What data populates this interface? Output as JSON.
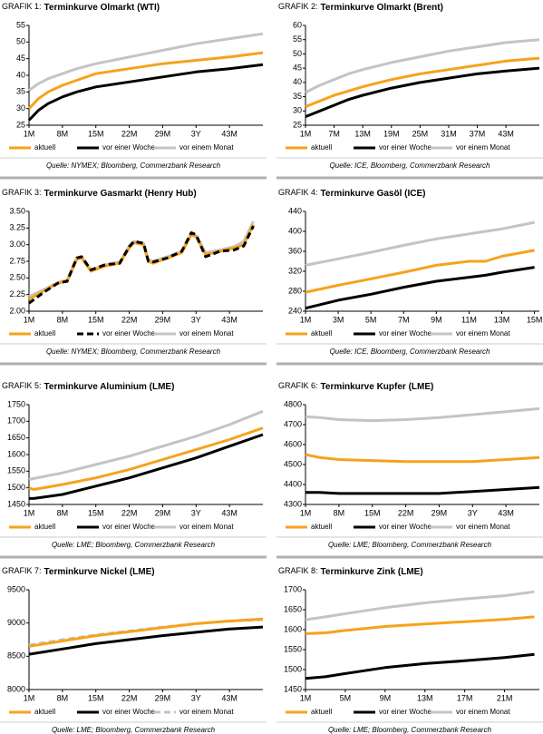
{
  "chart_data": [
    {
      "type": "line",
      "label": "GRAFIK 1:",
      "title": "Terminkurve Olmarkt (WTI)",
      "source": "Quelle: NYMEX; Bloomberg, Commerzbank Research",
      "x": [
        1,
        3,
        5,
        8,
        11,
        15,
        22,
        29,
        36,
        43,
        50
      ],
      "xlim": [
        1,
        50
      ],
      "xticks": [
        {
          "value": 1,
          "label": "1M"
        },
        {
          "value": 8,
          "label": "8M"
        },
        {
          "value": 15,
          "label": "15M"
        },
        {
          "value": 22,
          "label": "22M"
        },
        {
          "value": 29,
          "label": "29M"
        },
        {
          "value": 36,
          "label": "3Y"
        },
        {
          "value": 43,
          "label": "43M"
        }
      ],
      "ylim": [
        25,
        55
      ],
      "yticks": [
        25,
        30,
        35,
        40,
        45,
        50,
        55
      ],
      "series": [
        {
          "name": "aktuell",
          "color": "#f7a21b",
          "values": [
            30,
            33,
            35,
            37,
            38.5,
            40.5,
            42,
            43.5,
            44.5,
            45.5,
            46.8
          ]
        },
        {
          "name": "vor einer Woche",
          "color": "#000000",
          "values": [
            26.5,
            29.5,
            31.5,
            33.5,
            35,
            36.5,
            38,
            39.5,
            41,
            42,
            43.2
          ]
        },
        {
          "name": "vor einem Monat",
          "color": "#c4c4c4",
          "values": [
            35.5,
            37.5,
            39,
            40.5,
            42,
            43.5,
            45.5,
            47.5,
            49.5,
            51,
            52.5
          ]
        }
      ]
    },
    {
      "type": "line",
      "label": "GRAFIK 2:",
      "title": "Terminkurve Olmarkt (Brent)",
      "source": "Quelle: ICE, Bloomberg, Commerzbank Research",
      "x": [
        1,
        4,
        7,
        10,
        13,
        19,
        25,
        31,
        37,
        43,
        50
      ],
      "xlim": [
        1,
        50
      ],
      "xticks": [
        {
          "value": 1,
          "label": "1M"
        },
        {
          "value": 7,
          "label": "7M"
        },
        {
          "value": 13,
          "label": "13M"
        },
        {
          "value": 19,
          "label": "19M"
        },
        {
          "value": 25,
          "label": "25M"
        },
        {
          "value": 31,
          "label": "31M"
        },
        {
          "value": 37,
          "label": "37M"
        },
        {
          "value": 43,
          "label": "43M"
        }
      ],
      "ylim": [
        25,
        60
      ],
      "yticks": [
        25,
        30,
        35,
        40,
        45,
        50,
        55,
        60
      ],
      "series": [
        {
          "name": "aktuell",
          "color": "#f7a21b",
          "values": [
            31.5,
            33.5,
            35.5,
            37,
            38.5,
            41,
            43,
            44.5,
            46,
            47.5,
            48.5
          ]
        },
        {
          "name": "vor einer Woche",
          "color": "#000000",
          "values": [
            28,
            30,
            32,
            34,
            35.5,
            38,
            40,
            41.5,
            43,
            44,
            45
          ]
        },
        {
          "name": "vor einem Monat",
          "color": "#c4c4c4",
          "values": [
            36.5,
            39,
            41,
            43,
            44.5,
            47,
            49,
            51,
            52.5,
            54,
            55
          ]
        }
      ]
    },
    {
      "type": "line",
      "label": "GRAFIK 3:",
      "title": "Terminkurve Gasmarkt (Henry Hub)",
      "source": "Quelle: NYMEX; Bloomberg, Commerzbank Research",
      "x": [
        1,
        4,
        7,
        9,
        11,
        12,
        14,
        17,
        20,
        22,
        23,
        25,
        26,
        27,
        30,
        33,
        35,
        36,
        38,
        41,
        44,
        46,
        48
      ],
      "xlim": [
        1,
        50
      ],
      "xticks": [
        {
          "value": 1,
          "label": "1M"
        },
        {
          "value": 8,
          "label": "8M"
        },
        {
          "value": 15,
          "label": "15M"
        },
        {
          "value": 22,
          "label": "22M"
        },
        {
          "value": 29,
          "label": "29M"
        },
        {
          "value": 36,
          "label": "3Y"
        },
        {
          "value": 43,
          "label": "43M"
        }
      ],
      "ylim": [
        2,
        3.5
      ],
      "yticks": [
        {
          "value": 2,
          "label": "2.00"
        },
        2.25,
        {
          "value": 2.5,
          "label": "2.50"
        },
        2.75,
        {
          "value": 3,
          "label": "3.00"
        },
        3.25,
        {
          "value": 3.5,
          "label": "3.50"
        }
      ],
      "series": [
        {
          "name": "aktuell",
          "color": "#f7a21b",
          "values": [
            2.18,
            2.3,
            2.42,
            2.45,
            2.78,
            2.8,
            2.6,
            2.68,
            2.72,
            2.95,
            3.03,
            3.0,
            2.75,
            2.72,
            2.8,
            2.88,
            3.15,
            3.12,
            2.85,
            2.9,
            2.95,
            3.0,
            3.3
          ]
        },
        {
          "name": "vor einer Woche",
          "color": "#000000",
          "linestyle": "dashed",
          "values": [
            2.12,
            2.28,
            2.42,
            2.45,
            2.8,
            2.82,
            2.62,
            2.7,
            2.72,
            2.97,
            3.05,
            3.02,
            2.75,
            2.74,
            2.8,
            2.9,
            3.18,
            3.15,
            2.82,
            2.9,
            2.92,
            2.98,
            3.28
          ]
        },
        {
          "name": "vor einem Monat",
          "color": "#c4c4c4",
          "values": [
            2.22,
            2.32,
            2.43,
            2.47,
            2.8,
            2.82,
            2.62,
            2.7,
            2.74,
            2.98,
            3.05,
            3.02,
            2.78,
            2.75,
            2.82,
            2.9,
            3.18,
            3.14,
            2.88,
            2.92,
            2.97,
            3.05,
            3.35
          ]
        }
      ]
    },
    {
      "type": "line",
      "label": "GRAFIK 4:",
      "title": "Terminkurve Gasöl (ICE)",
      "source": "Quelle: ICE, Bloomberg, Commerzbank Research",
      "x": [
        1,
        3,
        5,
        7,
        9,
        11,
        12,
        13,
        15
      ],
      "xlim": [
        1,
        15.3
      ],
      "xticks": [
        {
          "value": 1,
          "label": "1M"
        },
        {
          "value": 3,
          "label": "3M"
        },
        {
          "value": 5,
          "label": "5M"
        },
        {
          "value": 7,
          "label": "7M"
        },
        {
          "value": 9,
          "label": "9M"
        },
        {
          "value": 11,
          "label": "11M"
        },
        {
          "value": 13,
          "label": "13M"
        },
        {
          "value": 15,
          "label": "15M"
        }
      ],
      "ylim": [
        240,
        440
      ],
      "yticks": [
        240,
        280,
        320,
        360,
        400,
        440
      ],
      "series": [
        {
          "name": "aktuell",
          "color": "#f7a21b",
          "values": [
            278,
            292,
            305,
            318,
            332,
            340,
            340,
            350,
            362
          ]
        },
        {
          "name": "vor einer Woche",
          "color": "#000000",
          "values": [
            246,
            262,
            274,
            288,
            300,
            308,
            312,
            318,
            328
          ]
        },
        {
          "name": "vor einem Monat",
          "color": "#c4c4c4",
          "values": [
            332,
            345,
            358,
            372,
            385,
            395,
            400,
            405,
            418
          ]
        }
      ]
    },
    {
      "type": "line",
      "label": "GRAFIK 5:",
      "title": "Terminkurve Aluminium (LME)",
      "source": "Quelle: LME; Bloomberg, Commerzbank Research",
      "x": [
        1,
        2,
        8,
        15,
        22,
        29,
        36,
        43,
        50
      ],
      "xlim": [
        1,
        50
      ],
      "xticks": [
        {
          "value": 1,
          "label": "1M"
        },
        {
          "value": 8,
          "label": "8M"
        },
        {
          "value": 15,
          "label": "15M"
        },
        {
          "value": 22,
          "label": "22M"
        },
        {
          "value": 29,
          "label": "29M"
        },
        {
          "value": 36,
          "label": "3Y"
        },
        {
          "value": 43,
          "label": "43M"
        }
      ],
      "ylim": [
        1450,
        1750
      ],
      "yticks": [
        1450,
        1500,
        1550,
        1600,
        1650,
        1700,
        1750
      ],
      "series": [
        {
          "name": "aktuell",
          "color": "#f7a21b",
          "values": [
            1500,
            1495,
            1510,
            1530,
            1555,
            1585,
            1615,
            1645,
            1680
          ]
        },
        {
          "name": "vor einer Woche",
          "color": "#000000",
          "values": [
            1468,
            1468,
            1480,
            1505,
            1530,
            1560,
            1590,
            1625,
            1660
          ]
        },
        {
          "name": "vor einem Monat",
          "color": "#c4c4c4",
          "values": [
            1525,
            1528,
            1545,
            1570,
            1595,
            1625,
            1655,
            1690,
            1730
          ]
        }
      ]
    },
    {
      "type": "line",
      "label": "GRAFIK 6:",
      "title": "Terminkurve Kupfer (LME)",
      "source": "Quelle: LME; Bloomberg, Commerzbank Research",
      "x": [
        1,
        4,
        8,
        15,
        22,
        29,
        36,
        43,
        50
      ],
      "xlim": [
        1,
        50
      ],
      "xticks": [
        {
          "value": 1,
          "label": "1M"
        },
        {
          "value": 8,
          "label": "8M"
        },
        {
          "value": 15,
          "label": "15M"
        },
        {
          "value": 22,
          "label": "22M"
        },
        {
          "value": 29,
          "label": "29M"
        },
        {
          "value": 36,
          "label": "3Y"
        },
        {
          "value": 43,
          "label": "43M"
        }
      ],
      "ylim": [
        4300,
        4800
      ],
      "yticks": [
        4300,
        4400,
        4500,
        4600,
        4700,
        4800
      ],
      "series": [
        {
          "name": "aktuell",
          "color": "#f7a21b",
          "values": [
            4550,
            4535,
            4525,
            4520,
            4515,
            4515,
            4515,
            4525,
            4535
          ]
        },
        {
          "name": "vor einer Woche",
          "color": "#000000",
          "values": [
            4360,
            4360,
            4355,
            4355,
            4355,
            4355,
            4365,
            4375,
            4385
          ]
        },
        {
          "name": "vor einem Monat",
          "color": "#c4c4c4",
          "values": [
            4740,
            4735,
            4725,
            4720,
            4725,
            4735,
            4750,
            4765,
            4780
          ]
        }
      ]
    },
    {
      "type": "line",
      "label": "GRAFIK 7:",
      "title": "Terminkurve Nickel (LME)",
      "source": "Quelle: LME; Bloomberg, Commerzbank Research",
      "x": [
        1,
        8,
        15,
        22,
        29,
        36,
        43,
        50
      ],
      "xlim": [
        1,
        50
      ],
      "xticks": [
        {
          "value": 1,
          "label": "1M"
        },
        {
          "value": 8,
          "label": "8M"
        },
        {
          "value": 15,
          "label": "15M"
        },
        {
          "value": 22,
          "label": "22M"
        },
        {
          "value": 29,
          "label": "29M"
        },
        {
          "value": 36,
          "label": "3Y"
        },
        {
          "value": 43,
          "label": "43M"
        }
      ],
      "ylim": [
        8000,
        9500
      ],
      "yticks": [
        8000,
        8500,
        9000,
        9500
      ],
      "series": [
        {
          "name": "aktuell",
          "color": "#f7a21b",
          "values": [
            8650,
            8730,
            8810,
            8870,
            8930,
            8990,
            9030,
            9060
          ]
        },
        {
          "name": "vor einer Woche",
          "color": "#000000",
          "values": [
            8530,
            8610,
            8690,
            8750,
            8810,
            8860,
            8910,
            8940
          ]
        },
        {
          "name": "vor einem Monat",
          "color": "#c4c4c4",
          "linestyle": "dashed",
          "values": [
            8670,
            8750,
            8820,
            8880,
            8940,
            8990,
            9030,
            9050
          ]
        }
      ]
    },
    {
      "type": "line",
      "label": "GRAFIK 8:",
      "title": "Terminkurve Zink (LME)",
      "source": "Quelle: LME; Bloomberg, Commerzbank Research",
      "x": [
        1,
        3,
        5,
        9,
        13,
        17,
        21,
        24
      ],
      "xlim": [
        1,
        24.5
      ],
      "xticks": [
        {
          "value": 1,
          "label": "1M"
        },
        {
          "value": 5,
          "label": "5M"
        },
        {
          "value": 9,
          "label": "9M"
        },
        {
          "value": 13,
          "label": "13M"
        },
        {
          "value": 17,
          "label": "17M"
        },
        {
          "value": 21,
          "label": "21M"
        }
      ],
      "ylim": [
        1450,
        1700
      ],
      "yticks": [
        1450,
        1500,
        1550,
        1600,
        1650,
        1700
      ],
      "series": [
        {
          "name": "aktuell",
          "color": "#f7a21b",
          "values": [
            1590,
            1592,
            1598,
            1608,
            1614,
            1620,
            1626,
            1632
          ]
        },
        {
          "name": "vor einer Woche",
          "color": "#000000",
          "values": [
            1478,
            1482,
            1490,
            1505,
            1515,
            1522,
            1530,
            1538
          ]
        },
        {
          "name": "vor einem Monat",
          "color": "#c4c4c4",
          "values": [
            1625,
            1632,
            1640,
            1655,
            1667,
            1677,
            1685,
            1695
          ]
        }
      ]
    }
  ]
}
